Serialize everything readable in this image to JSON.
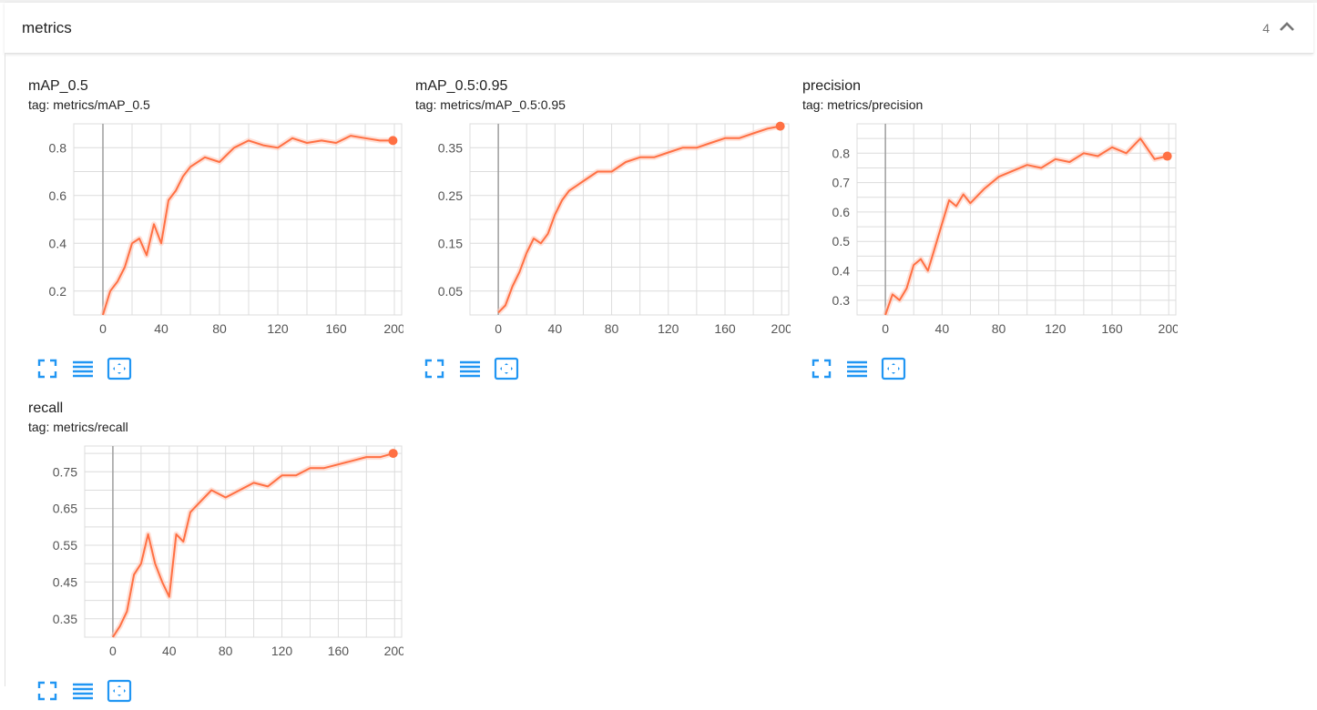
{
  "section": {
    "title": "metrics",
    "count": "4",
    "collapse_icon": "chevron-up-icon"
  },
  "colors": {
    "series": "#ff7043",
    "series_raw": "#ffccbc",
    "grid": "#dcdcdc",
    "axis": "#9e9e9e",
    "button": "#2196f3"
  },
  "cards": [
    {
      "title": "mAP_0.5",
      "tag": "tag: metrics/mAP_0.5",
      "buttons": [
        "fullscreen-icon",
        "list-icon",
        "fit-domain-icon"
      ]
    },
    {
      "title": "mAP_0.5:0.95",
      "tag": "tag: metrics/mAP_0.5:0.95",
      "buttons": [
        "fullscreen-icon",
        "list-icon",
        "fit-domain-icon"
      ]
    },
    {
      "title": "precision",
      "tag": "tag: metrics/precision",
      "buttons": [
        "fullscreen-icon",
        "list-icon",
        "fit-domain-icon"
      ]
    },
    {
      "title": "recall",
      "tag": "tag: metrics/recall",
      "buttons": [
        "fullscreen-icon",
        "list-icon",
        "fit-domain-icon"
      ]
    }
  ],
  "chart_data": [
    {
      "type": "line",
      "title": "mAP_0.5",
      "xlim": [
        -20,
        205
      ],
      "ylim": [
        0.1,
        0.9
      ],
      "xticks": [
        0,
        40,
        80,
        120,
        160,
        200
      ],
      "yticks": [
        0.2,
        0.4,
        0.6,
        0.8
      ],
      "ytick_labels": [
        "0.2",
        "0.4",
        "0.6",
        "0.8"
      ],
      "grid": true,
      "series": [
        {
          "x": [
            0,
            5,
            10,
            15,
            20,
            25,
            30,
            35,
            40,
            45,
            50,
            55,
            60,
            70,
            80,
            90,
            100,
            110,
            120,
            130,
            140,
            150,
            160,
            170,
            180,
            190,
            199
          ],
          "y": [
            0.1,
            0.2,
            0.24,
            0.3,
            0.4,
            0.42,
            0.35,
            0.48,
            0.4,
            0.58,
            0.62,
            0.68,
            0.72,
            0.76,
            0.74,
            0.8,
            0.83,
            0.81,
            0.8,
            0.84,
            0.82,
            0.83,
            0.82,
            0.85,
            0.84,
            0.83,
            0.83
          ]
        }
      ]
    },
    {
      "type": "line",
      "title": "mAP_0.5:0.95",
      "xlim": [
        -20,
        205
      ],
      "ylim": [
        0.0,
        0.4
      ],
      "xticks": [
        0,
        40,
        80,
        120,
        160,
        200
      ],
      "yticks": [
        0.05,
        0.15,
        0.25,
        0.35
      ],
      "ytick_labels": [
        "0.05",
        "0.15",
        "0.25",
        "0.35"
      ],
      "grid": true,
      "series": [
        {
          "x": [
            0,
            5,
            10,
            15,
            20,
            25,
            30,
            35,
            40,
            45,
            50,
            55,
            60,
            70,
            80,
            90,
            100,
            110,
            120,
            130,
            140,
            150,
            160,
            170,
            180,
            190,
            199
          ],
          "y": [
            0.005,
            0.02,
            0.06,
            0.09,
            0.13,
            0.16,
            0.15,
            0.17,
            0.21,
            0.24,
            0.26,
            0.27,
            0.28,
            0.3,
            0.3,
            0.32,
            0.33,
            0.33,
            0.34,
            0.35,
            0.35,
            0.36,
            0.37,
            0.37,
            0.38,
            0.39,
            0.395
          ]
        }
      ]
    },
    {
      "type": "line",
      "title": "precision",
      "xlim": [
        -20,
        205
      ],
      "ylim": [
        0.25,
        0.9
      ],
      "xticks": [
        0,
        40,
        80,
        120,
        160,
        200
      ],
      "yticks": [
        0.3,
        0.4,
        0.5,
        0.6,
        0.7,
        0.8
      ],
      "ytick_labels": [
        "0.3",
        "0.4",
        "0.5",
        "0.6",
        "0.7",
        "0.8"
      ],
      "grid": true,
      "series": [
        {
          "x": [
            0,
            5,
            10,
            15,
            20,
            25,
            30,
            35,
            40,
            45,
            50,
            55,
            60,
            70,
            80,
            90,
            100,
            110,
            120,
            130,
            140,
            150,
            160,
            170,
            180,
            190,
            199
          ],
          "y": [
            0.25,
            0.32,
            0.3,
            0.34,
            0.42,
            0.44,
            0.4,
            0.48,
            0.56,
            0.64,
            0.62,
            0.66,
            0.63,
            0.68,
            0.72,
            0.74,
            0.76,
            0.75,
            0.78,
            0.77,
            0.8,
            0.79,
            0.82,
            0.8,
            0.85,
            0.78,
            0.79
          ]
        }
      ]
    },
    {
      "type": "line",
      "title": "recall",
      "xlim": [
        -20,
        205
      ],
      "ylim": [
        0.3,
        0.82
      ],
      "xticks": [
        0,
        40,
        80,
        120,
        160,
        200
      ],
      "yticks": [
        0.35,
        0.45,
        0.55,
        0.65,
        0.75
      ],
      "ytick_labels": [
        "0.35",
        "0.45",
        "0.55",
        "0.65",
        "0.75"
      ],
      "grid": true,
      "series": [
        {
          "x": [
            0,
            5,
            10,
            15,
            20,
            25,
            30,
            35,
            40,
            45,
            50,
            55,
            60,
            70,
            80,
            90,
            100,
            110,
            120,
            130,
            140,
            150,
            160,
            170,
            180,
            190,
            199
          ],
          "y": [
            0.3,
            0.33,
            0.37,
            0.47,
            0.5,
            0.58,
            0.5,
            0.45,
            0.41,
            0.58,
            0.56,
            0.64,
            0.66,
            0.7,
            0.68,
            0.7,
            0.72,
            0.71,
            0.74,
            0.74,
            0.76,
            0.76,
            0.77,
            0.78,
            0.79,
            0.79,
            0.8
          ]
        }
      ]
    }
  ]
}
